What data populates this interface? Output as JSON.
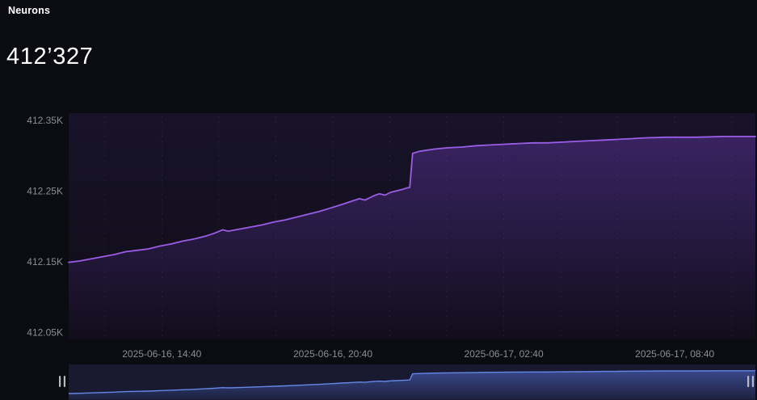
{
  "header": {
    "title": "Neurons",
    "value": "412’327"
  },
  "colors": {
    "background": "#0b0b12",
    "plot_bg_top": "#181329",
    "plot_bg_bottom": "#0f0c17",
    "line": "#9b5de8",
    "area_top": "rgba(134,73,230,0.30)",
    "area_bottom": "rgba(134,73,230,0.02)",
    "grid": "rgba(168,162,210,0.10)",
    "axis_text": "#8d8d97",
    "mini_bg": "#131326",
    "mini_line": "#6487e6",
    "mini_area_top": "rgba(86,118,226,0.50)",
    "mini_area_bottom": "rgba(86,118,226,0.08)",
    "range_overlay": "rgba(140,160,255,0.05)",
    "handle": "#b9b9c3"
  },
  "chart_data": {
    "type": "line",
    "title": "Neurons",
    "current_value": 412327,
    "xlabel": "",
    "ylabel": "",
    "x_unit": "hours from start of visible range (approx 2025-06-16 11:25)",
    "xlim": [
      0,
      24.1
    ],
    "ylim": [
      412040,
      412360
    ],
    "minimap_ylim": [
      412130,
      412345
    ],
    "grid": "vertical-dashed",
    "legend_position": "none",
    "y_ticks": [
      {
        "value": 412350,
        "label": "412.35K"
      },
      {
        "value": 412250,
        "label": "412.25K"
      },
      {
        "value": 412150,
        "label": "412.15K"
      },
      {
        "value": 412050,
        "label": "412.05K"
      }
    ],
    "x_ticks": [
      {
        "hour": 3.27,
        "label": "2025-06-16, 14:40"
      },
      {
        "hour": 9.27,
        "label": "2025-06-16, 20:40"
      },
      {
        "hour": 15.27,
        "label": "2025-06-17, 02:40"
      },
      {
        "hour": 21.27,
        "label": "2025-06-17, 08:40"
      }
    ],
    "minor_gridlines_hours": [
      1.27,
      3.27,
      5.27,
      7.27,
      9.27,
      11.27,
      13.27,
      15.27,
      17.27,
      19.27,
      21.27,
      23.27
    ],
    "series": [
      {
        "name": "Neurons",
        "color": "#9b5de8",
        "points": [
          [
            0,
            412149
          ],
          [
            0.4,
            412151
          ],
          [
            0.8,
            412154
          ],
          [
            1.2,
            412157
          ],
          [
            1.6,
            412160
          ],
          [
            2.0,
            412164
          ],
          [
            2.4,
            412166
          ],
          [
            2.8,
            412168
          ],
          [
            3.2,
            412172
          ],
          [
            3.6,
            412175
          ],
          [
            4.0,
            412179
          ],
          [
            4.4,
            412182
          ],
          [
            4.8,
            412186
          ],
          [
            5.1,
            412190
          ],
          [
            5.4,
            412195
          ],
          [
            5.6,
            412193
          ],
          [
            6.0,
            412196
          ],
          [
            6.4,
            412199
          ],
          [
            6.8,
            412202
          ],
          [
            7.2,
            412206
          ],
          [
            7.6,
            412209
          ],
          [
            8.0,
            412213
          ],
          [
            8.4,
            412217
          ],
          [
            8.8,
            412221
          ],
          [
            9.2,
            412226
          ],
          [
            9.6,
            412231
          ],
          [
            9.9,
            412235
          ],
          [
            10.2,
            412239
          ],
          [
            10.4,
            412237
          ],
          [
            10.7,
            412243
          ],
          [
            10.9,
            412246
          ],
          [
            11.1,
            412244
          ],
          [
            11.3,
            412248
          ],
          [
            11.5,
            412250
          ],
          [
            11.7,
            412252
          ],
          [
            11.85,
            412254
          ],
          [
            11.97,
            412255
          ],
          [
            12.07,
            412303
          ],
          [
            12.3,
            412306
          ],
          [
            12.8,
            412309
          ],
          [
            13.3,
            412311
          ],
          [
            13.8,
            412312
          ],
          [
            14.3,
            412314
          ],
          [
            14.8,
            412315
          ],
          [
            15.3,
            412316
          ],
          [
            15.8,
            412317
          ],
          [
            16.3,
            412318
          ],
          [
            16.8,
            412318
          ],
          [
            17.3,
            412319
          ],
          [
            17.8,
            412320
          ],
          [
            18.3,
            412321
          ],
          [
            18.8,
            412322
          ],
          [
            19.3,
            412323
          ],
          [
            19.8,
            412324
          ],
          [
            20.2,
            412325
          ],
          [
            21.0,
            412326
          ],
          [
            22.0,
            412326
          ],
          [
            23.0,
            412327
          ],
          [
            24.1,
            412327
          ]
        ]
      }
    ]
  },
  "range_selector": {
    "left_handle_icon": "drag-handle-icon",
    "right_handle_icon": "drag-handle-icon",
    "selected_range": "full"
  }
}
